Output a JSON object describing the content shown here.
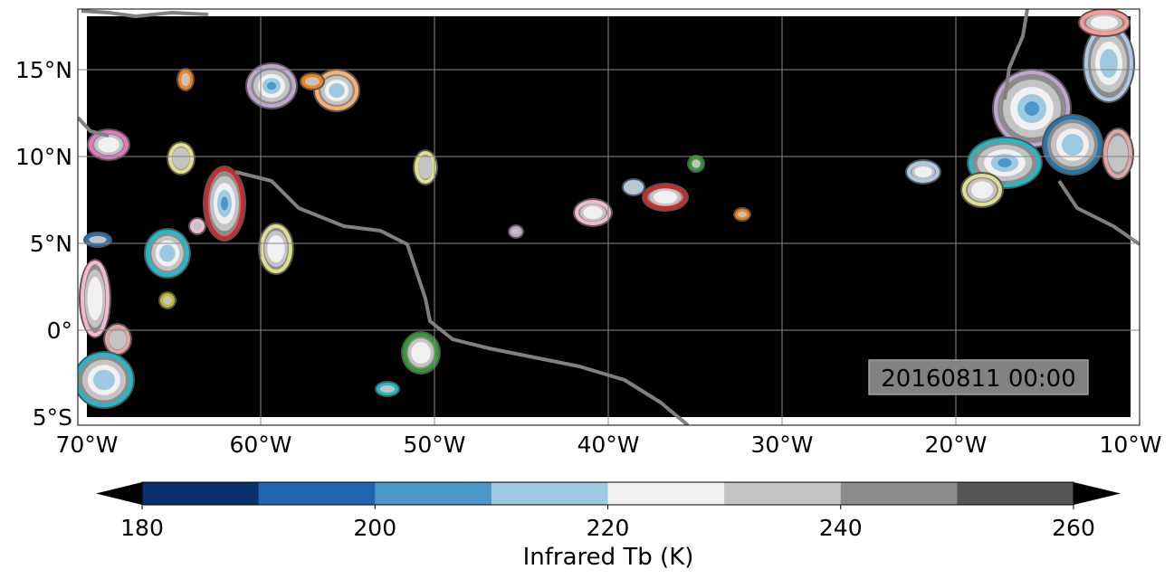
{
  "map": {
    "timestamp": "20160811 00:00",
    "lon_labels": [
      "70°W",
      "60°W",
      "50°W",
      "40°W",
      "30°W",
      "20°W",
      "10°W"
    ],
    "lat_labels": [
      "15°N",
      "10°N",
      "5°N",
      "0°",
      "5°S"
    ],
    "extent": {
      "lon": [
        -70,
        -10
      ],
      "lat": [
        -5,
        18
      ]
    },
    "background_color": "#000000",
    "gridlines": true,
    "coastline_color": "#808080"
  },
  "colorbar": {
    "label": "Infrared Tb (K)",
    "tick_labels": [
      "180",
      "200",
      "220",
      "240",
      "260"
    ],
    "levels": [
      180,
      190,
      200,
      210,
      220,
      230,
      240,
      250,
      260
    ],
    "colors": [
      "#08306b",
      "#1f66ae",
      "#4a98c9",
      "#9ecae1",
      "#f0f0f0",
      "#c4c4c4",
      "#8c8c8c",
      "#555555"
    ],
    "extend": "both"
  }
}
